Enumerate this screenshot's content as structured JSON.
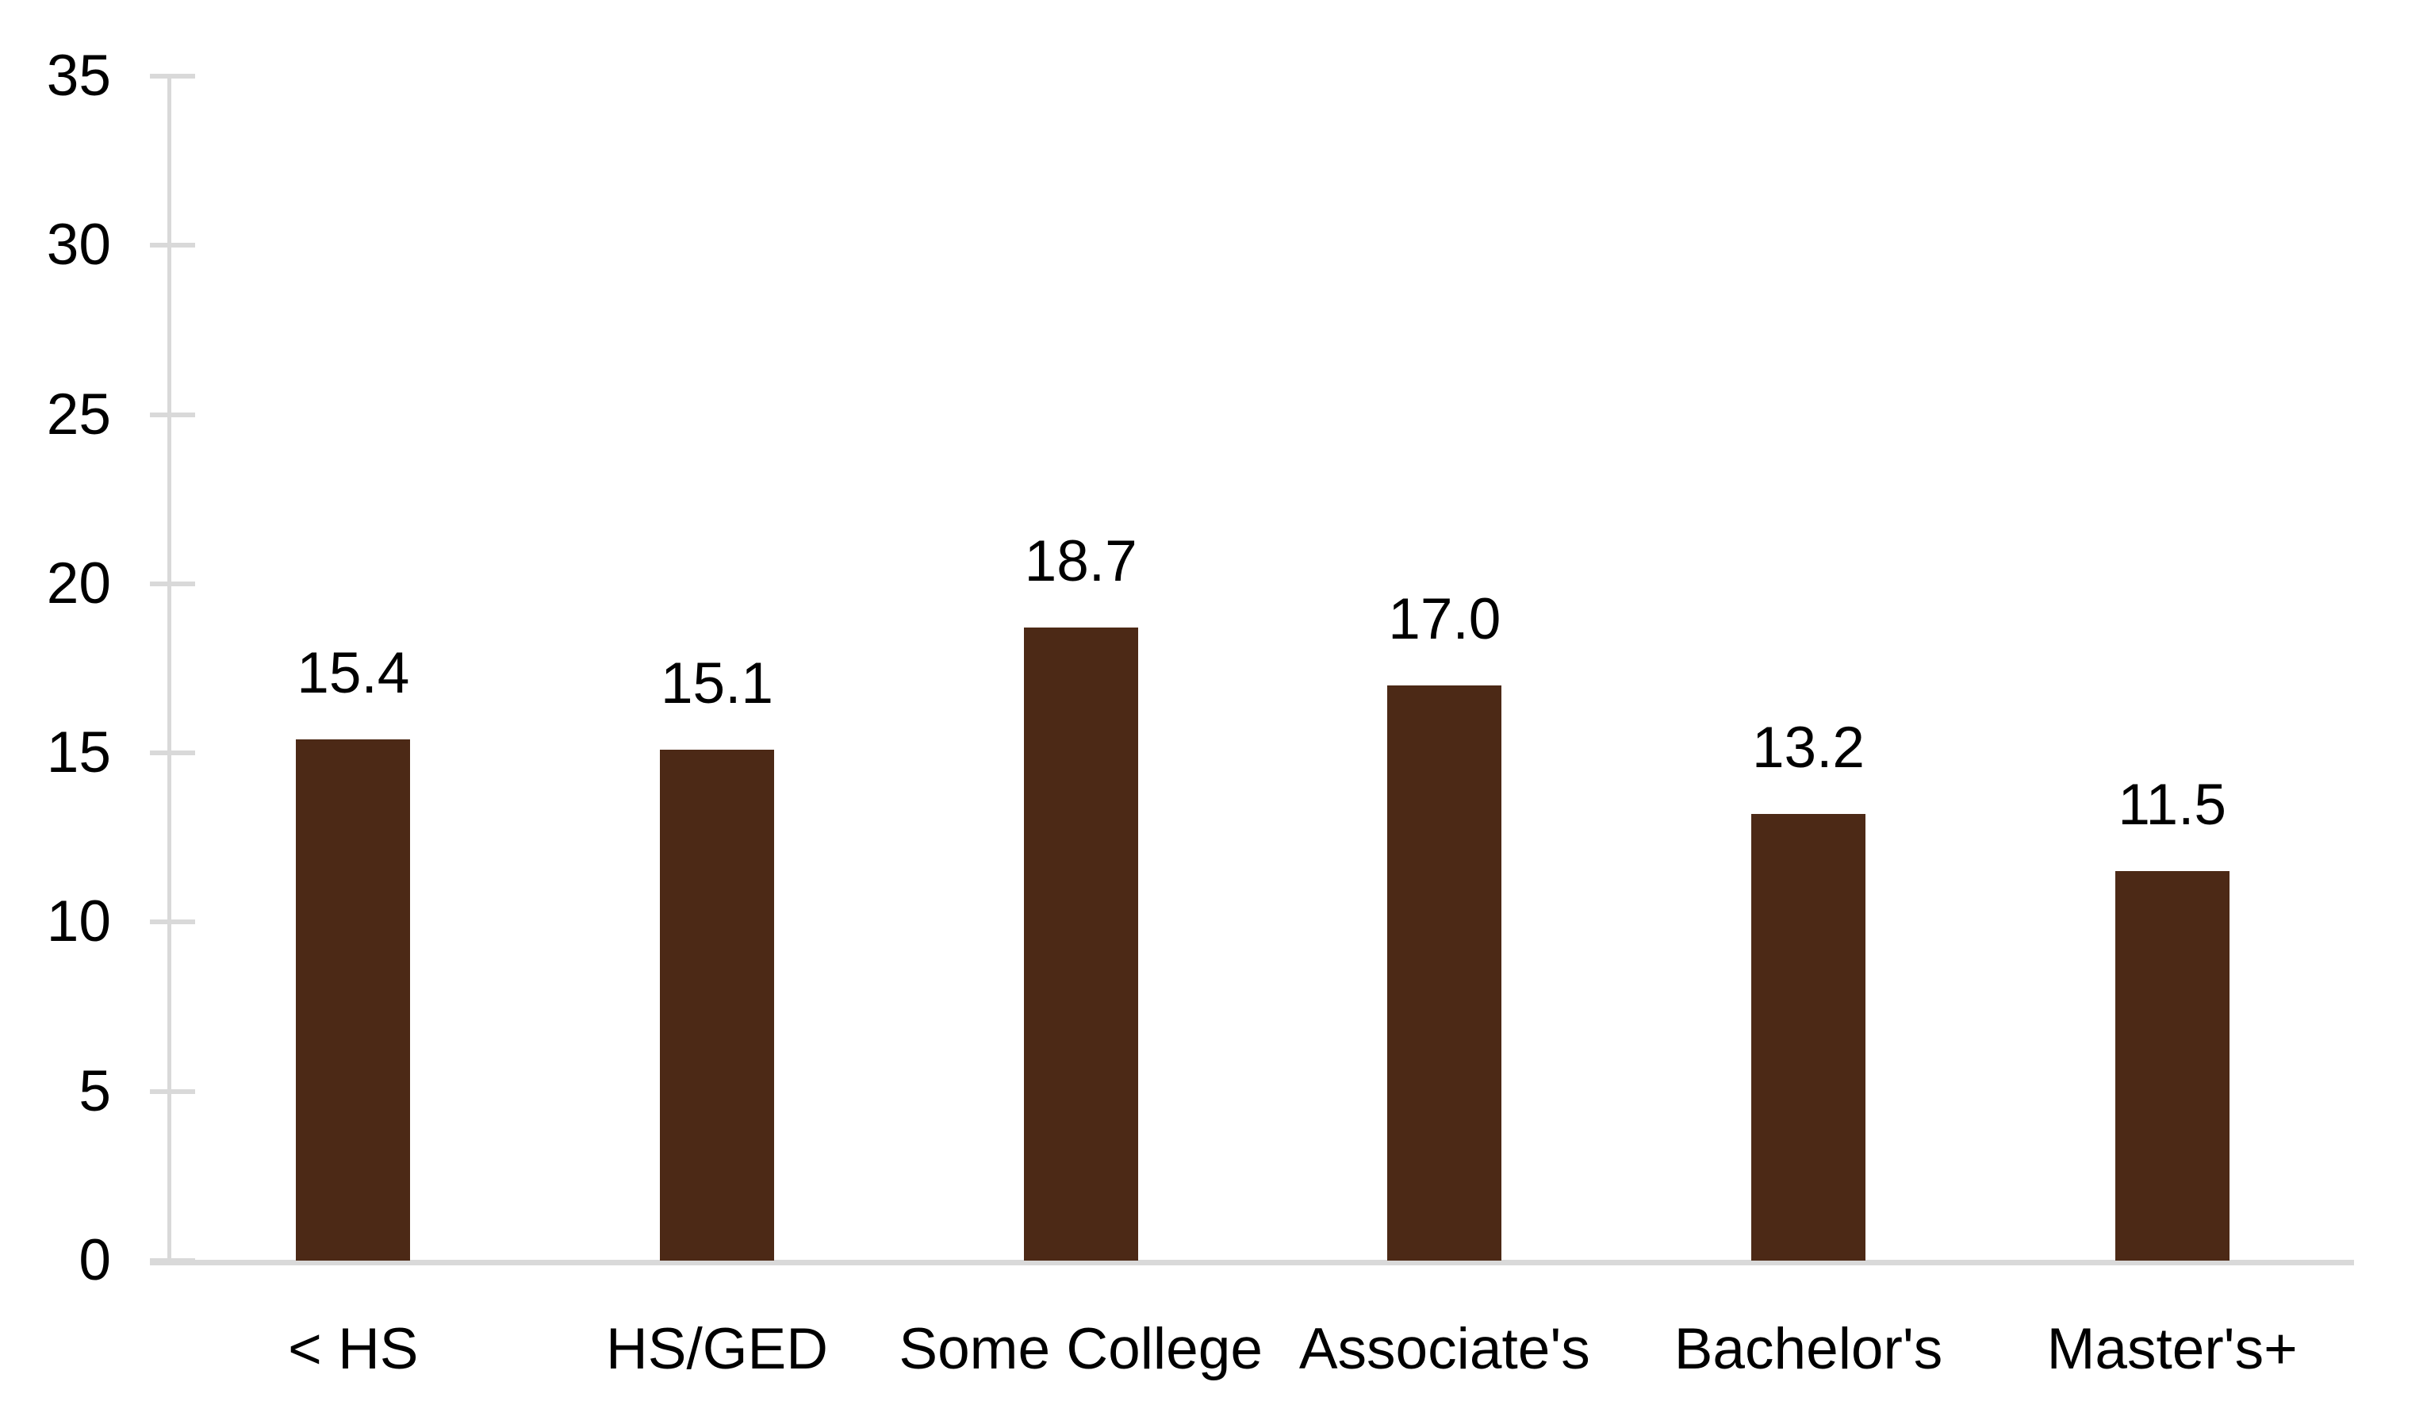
{
  "chart_data": {
    "type": "bar",
    "title": "",
    "categories": [
      "< HS",
      "HS/GED",
      "Some College",
      "Associate's",
      "Bachelor's",
      "Master's+"
    ],
    "values": [
      15.4,
      15.1,
      18.7,
      17.0,
      13.2,
      11.5
    ],
    "value_labels": [
      "15.4",
      "15.1",
      "18.7",
      "17.0",
      "13.2",
      "11.5"
    ],
    "yticks": [
      "0",
      "5",
      "10",
      "15",
      "20",
      "25",
      "30",
      "35"
    ],
    "ylim": [
      0,
      35
    ],
    "xlabel": "",
    "ylabel": "",
    "grid": false,
    "legend": null,
    "colors": {
      "bar": "#4C2916",
      "axis": "#D9D9D9",
      "text": "#000000",
      "background": "#FFFFFF"
    }
  }
}
